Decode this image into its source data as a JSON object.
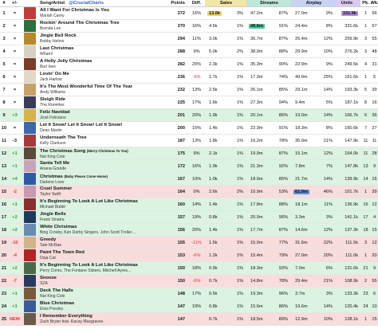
{
  "header": {
    "rank": "#",
    "change": "+/-",
    "song_artist": "Song/Artist",
    "handle": "@CrucialCharts",
    "points": "Points",
    "diff": "Diff.",
    "sales": "Sales",
    "streams": "Streams",
    "airplay": "Airplay",
    "units": "Units",
    "peak": "Pk.",
    "weeks": "Wk."
  },
  "colors": {
    "sales_header": "#f2e7a8",
    "streams_header": "#bfe7d8",
    "airplay_header": "#c7d3f0",
    "units_header": "#dccaf0",
    "row_up": "#dcf3e2",
    "row_down": "#f9dcdc",
    "row_new": "#f9dcdc",
    "sales_top": "#f0d36b",
    "streams_top": "#58c497",
    "airplay_top": "#5f8ee0",
    "units_top": "#b28bde"
  },
  "rows": [
    {
      "rank": "1",
      "change": "=",
      "title": "All I Want For Christmas Is You",
      "artist": "Mariah Carey",
      "points": "372",
      "diff": "16%",
      "sales": "13.0k",
      "sales_pct": "3%",
      "streams": "47.2m",
      "streams_pct": "87%",
      "airplay": "27.0m",
      "airplay_pct": "9%",
      "units": "331.9k",
      "peak": "1",
      "weeks": "56",
      "status": "same",
      "art": "#c23b3b",
      "top": "sales"
    },
    {
      "rank": "2",
      "change": "=",
      "title": "Rockin' Around The Christmas Tree",
      "artist": "Brenda Lee",
      "points": "370",
      "diff": "16%",
      "sales": "4.5k",
      "sales_pct": "1%",
      "streams": "48.6m",
      "streams_pct": "91%",
      "airplay": "24.4m",
      "airplay_pct": "8%",
      "units": "331.6k",
      "peak": "1",
      "weeks": "57",
      "status": "same",
      "art": "#2f6f3e",
      "top": "streams"
    },
    {
      "rank": "3",
      "change": "=",
      "title": "Jingle Bell Rock",
      "artist": "Bobby Helms",
      "points": "294",
      "diff": "11%",
      "sales": "3.0k",
      "sales_pct": "1%",
      "streams": "36.7m",
      "streams_pct": "87%",
      "airplay": "25.4m",
      "airplay_pct": "12%",
      "units": "259.9k",
      "peak": "3",
      "weeks": "55",
      "status": "same",
      "art": "#b5892e",
      "top": ""
    },
    {
      "rank": "4",
      "change": "=",
      "title": "Last Christmas",
      "artist": "Wham!",
      "points": "288",
      "diff": "9%",
      "sales": "5.0k",
      "sales_pct": "2%",
      "streams": "38.0m",
      "streams_pct": "88%",
      "airplay": "29.9m",
      "airplay_pct": "10%",
      "units": "276.2k",
      "peak": "3",
      "weeks": "48",
      "status": "same",
      "art": "#d8d0c4",
      "top": ""
    },
    {
      "rank": "5",
      "change": "=",
      "title": "A Holly Jolly Christmas",
      "artist": "Burl Ives",
      "points": "282",
      "diff": "20%",
      "sales": "2.3k",
      "sales_pct": "1%",
      "streams": "35.3m",
      "streams_pct": "90%",
      "airplay": "22.9m",
      "airplay_pct": "9%",
      "units": "249.5k",
      "peak": "4",
      "weeks": "31",
      "status": "same",
      "art": "#7a3d2a",
      "top": ""
    },
    {
      "rank": "6",
      "change": "=",
      "title": "Lovin' On Me",
      "artist": "Jack Harlow",
      "points": "236",
      "diff": "-5%",
      "sales": "1.7k",
      "sales_pct": "1%",
      "streams": "17.3m",
      "streams_pct": "74%",
      "airplay": "40.0m",
      "airplay_pct": "25%",
      "units": "161.6k",
      "peak": "1",
      "weeks": "5",
      "status": "same",
      "art": "#e0d8c8",
      "top": ""
    },
    {
      "rank": "7",
      "change": "=",
      "title": "It's The Most Wonderful Time Of The Year",
      "artist": "Andy Williams",
      "points": "232",
      "diff": "13%",
      "sales": "2.5k",
      "sales_pct": "1%",
      "streams": "26.1m",
      "streams_pct": "85%",
      "airplay": "29.1m",
      "airplay_pct": "14%",
      "units": "193.3k",
      "peak": "5",
      "weeks": "39",
      "status": "same",
      "art": "#c8a06a",
      "top": ""
    },
    {
      "rank": "8",
      "change": "=",
      "title": "Sleigh Ride",
      "artist": "The Ronettes",
      "points": "225",
      "diff": "17%",
      "sales": "1.6k",
      "sales_pct": "1%",
      "streams": "27.3m",
      "streams_pct": "94%",
      "airplay": "9.4m",
      "airplay_pct": "5%",
      "units": "187.1k",
      "peak": "8",
      "weeks": "16",
      "status": "same",
      "art": "#3a3a5a",
      "top": ""
    },
    {
      "rank": "9",
      "change": "+3",
      "title": "Feliz Navidad",
      "artist": "José Feliciano",
      "points": "201",
      "diff": "20%",
      "sales": "1.9k",
      "sales_pct": "1%",
      "streams": "20.1m",
      "streams_pct": "86%",
      "airplay": "19.0m",
      "airplay_pct": "14%",
      "units": "166.7k",
      "peak": "6",
      "weeks": "36",
      "status": "up",
      "art": "#d6b24a",
      "top": ""
    },
    {
      "rank": "10",
      "change": "=",
      "title": "Let It Snow! Let It Snow! Let It Snow!",
      "artist": "Dean Martin",
      "points": "200",
      "diff": "15%",
      "sales": "1.4k",
      "sales_pct": "1%",
      "streams": "22.3m",
      "streams_pct": "91%",
      "airplay": "18.3m",
      "airplay_pct": "8%",
      "units": "160.6k",
      "peak": "7",
      "weeks": "27",
      "status": "same",
      "art": "#3c6aa8",
      "top": ""
    },
    {
      "rank": "11",
      "change": "-3",
      "title": "Underneath The Tree",
      "artist": "Kelly Clarkson",
      "points": "187",
      "diff": "13%",
      "sales": "1.8k",
      "sales_pct": "1%",
      "streams": "16.2m",
      "streams_pct": "78%",
      "airplay": "35.0m",
      "airplay_pct": "21%",
      "units": "147.9k",
      "peak": "11",
      "weeks": "11",
      "status": "same",
      "art": "#a63a3a",
      "top": ""
    },
    {
      "rank": "12",
      "change": "+1",
      "title": "The Christmas Song",
      "title_sub": "(Merry Christmas To You)",
      "artist": "Nat King Cole",
      "points": "175",
      "diff": "9%",
      "sales": "2.1k",
      "sales_pct": "1%",
      "streams": "19.9m",
      "streams_pct": "87%",
      "airplay": "15.1m",
      "airplay_pct": "12%",
      "units": "154.0k",
      "peak": "11",
      "weeks": "28",
      "status": "up",
      "art": "#5a4a3a",
      "top": ""
    },
    {
      "rank": "13",
      "change": "+1",
      "title": "Santa Tell Me",
      "artist": "Ariana Grande",
      "points": "172",
      "diff": "16%",
      "sales": "1.9k",
      "sales_pct": "1%",
      "streams": "21.3m",
      "streams_pct": "92%",
      "airplay": "7.8m",
      "airplay_pct": "7%",
      "units": "147.8k",
      "peak": "13",
      "weeks": "9",
      "status": "up",
      "art": "#c9a3b8",
      "top": ""
    },
    {
      "rank": "14",
      "change": "+4",
      "title": "Christmas",
      "title_sub": "(Baby Please Come Home)",
      "artist": "Darlene Love",
      "points": "167",
      "diff": "10%",
      "sales": "1.0k",
      "sales_pct": "1%",
      "streams": "18.0m",
      "streams_pct": "85%",
      "airplay": "21.7m",
      "airplay_pct": "14%",
      "units": "139.9k",
      "peak": "14",
      "weeks": "16",
      "status": "up",
      "art": "#2e5aa0",
      "top": ""
    },
    {
      "rank": "15",
      "change": "-2",
      "title": "Cruel Summer",
      "artist": "Taylor Swift",
      "points": "164",
      "diff": "0%",
      "sales": "2.6k",
      "sales_pct": "2%",
      "streams": "10.9m",
      "streams_pct": "53%",
      "airplay": "61.0m",
      "airplay_pct": "46%",
      "units": "101.7k",
      "peak": "1",
      "weeks": "39",
      "status": "down",
      "art": "#c89ab0",
      "top": "airplay"
    },
    {
      "rank": "16",
      "change": "+1",
      "title": "It's Beginning To Look A Lot Like Christmas",
      "artist": "Michael Bublé",
      "points": "160",
      "diff": "14%",
      "sales": "1.4k",
      "sales_pct": "1%",
      "streams": "17.8m",
      "streams_pct": "88%",
      "airplay": "18.1m",
      "airplay_pct": "11%",
      "units": "136.9k",
      "peak": "16",
      "weeks": "12",
      "status": "up",
      "art": "#8a2e2e",
      "top": ""
    },
    {
      "rank": "17",
      "change": "+2",
      "title": "Jingle Bells",
      "artist": "Frank Sinatra",
      "points": "157",
      "diff": "19%",
      "sales": "0.8k",
      "sales_pct": "1%",
      "streams": "20.0m",
      "streams_pct": "96%",
      "airplay": "3.3m",
      "airplay_pct": "3%",
      "units": "141.1k",
      "peak": "17",
      "weeks": "4",
      "status": "up",
      "art": "#1e3a5a",
      "top": ""
    },
    {
      "rank": "18",
      "change": "+2",
      "title": "White Christmas",
      "artist": "Bing Crosby, Ken Darby Singers, John Scott Troller…",
      "points": "156",
      "diff": "20%",
      "sales": "1.4k",
      "sales_pct": "1%",
      "streams": "17.7m",
      "streams_pct": "87%",
      "airplay": "14.6m",
      "airplay_pct": "12%",
      "units": "137.3k",
      "peak": "18",
      "weeks": "15",
      "status": "up",
      "art": "#6a8ab0",
      "top": ""
    },
    {
      "rank": "19",
      "change": "-10",
      "title": "Greedy",
      "artist": "Tate McRae",
      "points": "155",
      "diff": "-11%",
      "sales": "1.5k",
      "sales_pct": "1%",
      "streams": "15.0m",
      "streams_pct": "77%",
      "airplay": "31.6m",
      "airplay_pct": "22%",
      "units": "111.5k",
      "peak": "3",
      "weeks": "12",
      "status": "down",
      "art": "#d2b48c",
      "top": ""
    },
    {
      "rank": "20",
      "change": "-4",
      "title": "Paint The Town Red",
      "artist": "Doja Cat",
      "points": "153",
      "diff": "-6%",
      "sales": "1.2k",
      "sales_pct": "1%",
      "streams": "15.4m",
      "streams_pct": "79%",
      "airplay": "27.0m",
      "airplay_pct": "20%",
      "units": "111.0k",
      "peak": "1",
      "weeks": "20",
      "status": "down",
      "art": "#b02424",
      "top": ""
    },
    {
      "rank": "21",
      "change": "+2",
      "title": "It's Beginning To Look A Lot Like Christmas",
      "artist": "Perry Como, The Fontane Sisters, Mitchell Ayres…",
      "points": "150",
      "diff": "18%",
      "sales": "0.9k",
      "sales_pct": "1%",
      "streams": "18.3m",
      "streams_pct": "93%",
      "airplay": "7.0m",
      "airplay_pct": "6%",
      "units": "131.6k",
      "peak": "21",
      "weeks": "9",
      "status": "up",
      "art": "#4a6a4a",
      "top": ""
    },
    {
      "rank": "22",
      "change": "-7",
      "title": "Snooze",
      "artist": "SZA",
      "points": "150",
      "diff": "-6%",
      "sales": "0.7k",
      "sales_pct": "1%",
      "streams": "14.8m",
      "streams_pct": "78%",
      "airplay": "29.4m",
      "airplay_pct": "21%",
      "units": "108.9k",
      "peak": "2",
      "weeks": "55",
      "status": "down",
      "art": "#2a3a5a",
      "top": ""
    },
    {
      "rank": "23",
      "change": "+1",
      "title": "Deck The Halls",
      "artist": "Nat King Cole",
      "points": "148",
      "diff": "17%",
      "sales": "0.5k",
      "sales_pct": "1%",
      "streams": "19.3m",
      "streams_pct": "96%",
      "airplay": "3.7m",
      "airplay_pct": "3%",
      "units": "133.3k",
      "peak": "23",
      "weeks": "6",
      "status": "up",
      "art": "#7a5a3a",
      "top": ""
    },
    {
      "rank": "24",
      "change": "+1",
      "title": "Blue Christmas",
      "artist": "Elvis Presley",
      "points": "147",
      "diff": "19%",
      "sales": "0.8k",
      "sales_pct": "1%",
      "streams": "15.6m",
      "streams_pct": "86%",
      "airplay": "19.6m",
      "airplay_pct": "14%",
      "units": "120.4k",
      "peak": "24",
      "weeks": "10",
      "status": "up",
      "art": "#3a5a9a",
      "top": ""
    },
    {
      "rank": "25",
      "change": "NEW",
      "title": "I Remember Everything",
      "artist": "Zach Bryan feat. Kacey Musgraves",
      "points": "147",
      "diff": "",
      "sales": "0.7k",
      "sales_pct": "1%",
      "streams": "18.5m",
      "streams_pct": "89%",
      "airplay": "12.9m",
      "airplay_pct": "10%",
      "units": "128.1k",
      "peak": "1",
      "weeks": "15",
      "status": "new",
      "art": "#6a5a4a",
      "top": ""
    }
  ]
}
